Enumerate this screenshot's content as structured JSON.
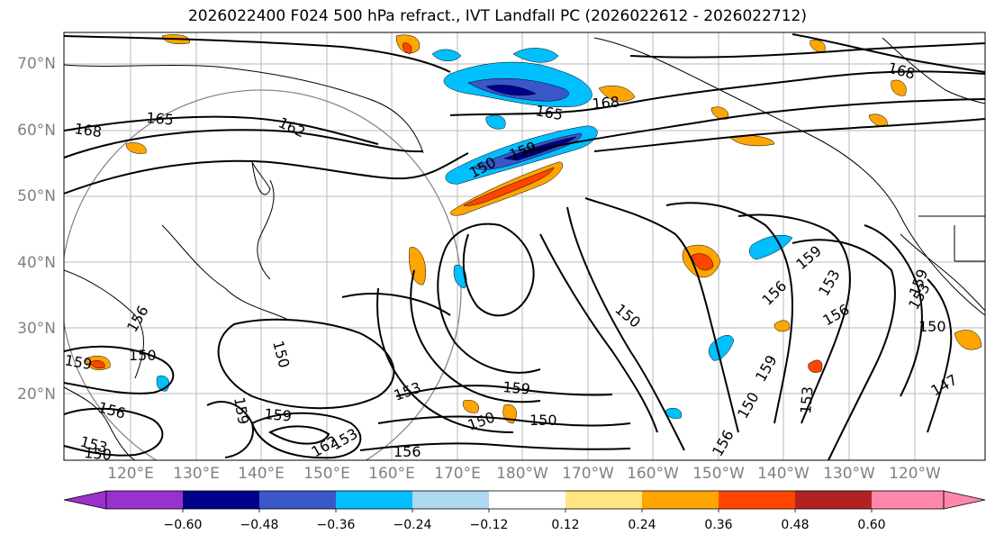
{
  "title": "2026022400 F024 500 hPa refract., IVT Landfall PC (2026022612 - 2026022712)",
  "latitude_labels": [
    "70°N",
    "60°N",
    "50°N",
    "40°N",
    "30°N",
    "20°N"
  ],
  "longitude_labels": [
    "120°E",
    "130°E",
    "140°E",
    "150°E",
    "160°E",
    "170°E",
    "180°W",
    "170°W",
    "160°W",
    "150°W",
    "140°W",
    "130°W",
    "120°W"
  ],
  "contour_labels": [
    "168",
    "165",
    "162",
    "165",
    "168",
    "159",
    "150",
    "168",
    "159",
    "156",
    "153",
    "159",
    "150",
    "150",
    "156",
    "153",
    "156",
    "159",
    "150",
    "147",
    "153",
    "159",
    "150",
    "159",
    "150",
    "156",
    "150",
    "159",
    "150",
    "153",
    "150",
    "159",
    "156",
    "162",
    "153",
    "153",
    "156"
  ],
  "colorbar": {
    "ticks": [
      "−0.60",
      "−0.48",
      "−0.36",
      "−0.24",
      "−0.12",
      "0.12",
      "0.24",
      "0.36",
      "0.48",
      "0.60"
    ],
    "colors": [
      "#9932cc",
      "#00008b",
      "#3a57c9",
      "#00bfff",
      "#add8f0",
      "#ffffff",
      "#ffe680",
      "#ffa500",
      "#ff4500",
      "#b22222",
      "#ff88aa"
    ]
  },
  "colors": {
    "positive_orange": "#ffa500",
    "positive_yellow": "#ffe680",
    "positive_red": "#ff4500",
    "negative_lightblue": "#add8f0",
    "negative_blue": "#00bfff",
    "negative_midblue": "#3a57c9",
    "negative_darkblue": "#00008b"
  }
}
